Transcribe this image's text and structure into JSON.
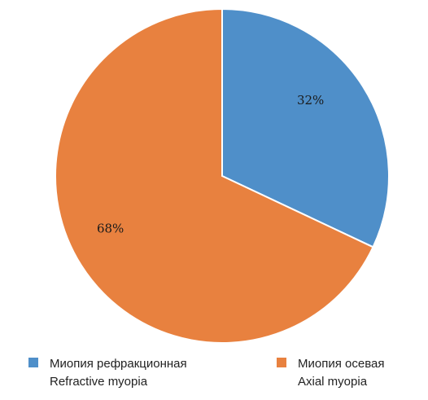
{
  "chart_data": {
    "type": "pie",
    "title": "",
    "start_angle": "12 o'clock",
    "direction": "clockwise",
    "slices": [
      {
        "label_ru": "Миопия рефракционная",
        "label_en": "Refractive myopia",
        "value": 32,
        "value_label": "32%",
        "color": "#4F8FC9"
      },
      {
        "label_ru": "Миопия осевая",
        "label_en": "Axial myopia",
        "value": 68,
        "value_label": "68%",
        "color": "#E8813F"
      }
    ],
    "legend_position": "bottom"
  }
}
